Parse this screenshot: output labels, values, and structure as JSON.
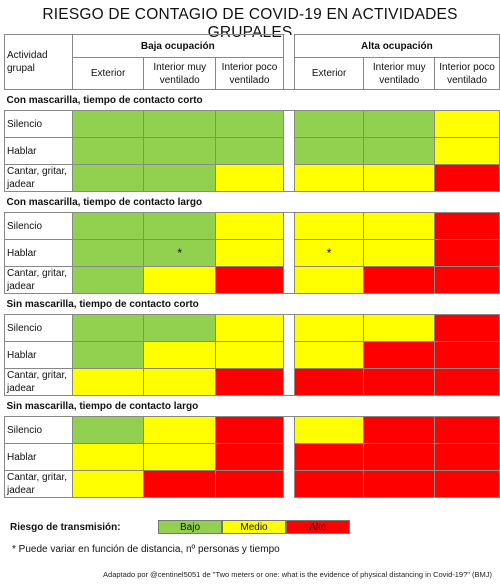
{
  "title": "RIESGO DE CONTAGIO DE COVID-19 EN ACTIVIDADES GRUPALES",
  "header": {
    "activity_col": "Actividad grupal",
    "groups": [
      "Baja ocupación",
      "Alta ocupación"
    ],
    "subcols": [
      "Exterior",
      "Interior muy ventilado",
      "Interior poco ventilado"
    ]
  },
  "sections": [
    {
      "title": "Con mascarilla, tiempo de contacto corto",
      "rows": [
        {
          "label": "Silencio",
          "cells": [
            "bajo",
            "bajo",
            "bajo",
            "bajo",
            "bajo",
            "medio"
          ],
          "marks": [
            "",
            "",
            "",
            "",
            "",
            ""
          ]
        },
        {
          "label": "Hablar",
          "cells": [
            "bajo",
            "bajo",
            "bajo",
            "bajo",
            "bajo",
            "medio"
          ],
          "marks": [
            "",
            "",
            "",
            "",
            "",
            ""
          ]
        },
        {
          "label": "Cantar, gritar, jadear",
          "cells": [
            "bajo",
            "bajo",
            "medio",
            "medio",
            "medio",
            "alto"
          ],
          "marks": [
            "",
            "",
            "",
            "",
            "",
            ""
          ]
        }
      ]
    },
    {
      "title": "Con mascarilla, tiempo de contacto largo",
      "rows": [
        {
          "label": "Silencio",
          "cells": [
            "bajo",
            "bajo",
            "medio",
            "medio",
            "medio",
            "alto"
          ],
          "marks": [
            "",
            "",
            "",
            "",
            "",
            ""
          ]
        },
        {
          "label": "Hablar",
          "cells": [
            "bajo",
            "bajo",
            "medio",
            "medio",
            "medio",
            "alto"
          ],
          "marks": [
            "",
            "*",
            "",
            "*",
            "",
            ""
          ]
        },
        {
          "label": "Cantar, gritar, jadear",
          "cells": [
            "bajo",
            "medio",
            "alto",
            "medio",
            "alto",
            "alto"
          ],
          "marks": [
            "",
            "",
            "",
            "",
            "",
            ""
          ]
        }
      ]
    },
    {
      "title": "Sin mascarilla, tiempo de contacto corto",
      "rows": [
        {
          "label": "Silencio",
          "cells": [
            "bajo",
            "bajo",
            "medio",
            "medio",
            "medio",
            "alto"
          ],
          "marks": [
            "",
            "",
            "",
            "",
            "",
            ""
          ]
        },
        {
          "label": "Hablar",
          "cells": [
            "bajo",
            "medio",
            "medio",
            "medio",
            "alto",
            "alto"
          ],
          "marks": [
            "",
            "",
            "",
            "",
            "",
            ""
          ]
        },
        {
          "label": "Cantar, gritar, jadear",
          "cells": [
            "medio",
            "medio",
            "alto",
            "alto",
            "alto",
            "alto"
          ],
          "marks": [
            "",
            "",
            "",
            "",
            "",
            ""
          ]
        }
      ]
    },
    {
      "title": "Sin mascarilla, tiempo de contacto largo",
      "rows": [
        {
          "label": "Silencio",
          "cells": [
            "bajo",
            "medio",
            "alto",
            "medio",
            "alto",
            "alto"
          ],
          "marks": [
            "",
            "",
            "",
            "",
            "",
            ""
          ]
        },
        {
          "label": "Hablar",
          "cells": [
            "medio",
            "medio",
            "alto",
            "alto",
            "alto",
            "alto"
          ],
          "marks": [
            "",
            "",
            "",
            "",
            "",
            ""
          ]
        },
        {
          "label": "Cantar, gritar, jadear",
          "cells": [
            "medio",
            "alto",
            "alto",
            "alto",
            "alto",
            "alto"
          ],
          "marks": [
            "",
            "",
            "",
            "",
            "",
            ""
          ]
        }
      ]
    }
  ],
  "legend": {
    "title": "Riesgo de transmisión:",
    "items": [
      {
        "key": "bajo",
        "label": "Bajo",
        "color": "#92d050"
      },
      {
        "key": "medio",
        "label": "Medio",
        "color": "#ffff00"
      },
      {
        "key": "alto",
        "label": "Alto",
        "color": "#ff0000"
      }
    ]
  },
  "footnote": "*  Puede variar en función de distancia, nº personas y tiempo",
  "source": "Adaptado por @centinel5051 de \"Two meters or one: what is the evidence of physical distancing in Covid-19?\" (BMJ)"
}
